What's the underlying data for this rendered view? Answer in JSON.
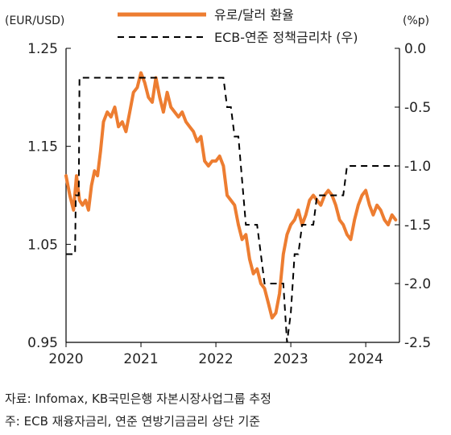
{
  "chart_data": {
    "type": "line",
    "left_unit": "(EUR/USD)",
    "right_unit": "(%p)",
    "left_axis": {
      "min": 0.95,
      "max": 1.25,
      "ticks": [
        "1.25",
        "1.15",
        "1.05",
        "0.95"
      ],
      "tick_values": [
        1.25,
        1.15,
        1.05,
        0.95
      ]
    },
    "right_axis": {
      "min": -2.5,
      "max": 0.0,
      "ticks": [
        "0.0",
        "-0.5",
        "-1.0",
        "-1.5",
        "-2.0",
        "-2.5"
      ],
      "tick_values": [
        0.0,
        -0.5,
        -1.0,
        -1.5,
        -2.0,
        -2.5
      ]
    },
    "x_axis": {
      "min": 2020.0,
      "max": 2024.45,
      "ticks": [
        "2020",
        "2021",
        "2022",
        "2023",
        "2024"
      ],
      "tick_values": [
        2020,
        2021,
        2022,
        2023,
        2024
      ]
    },
    "series": [
      {
        "name": "유로/달러 환율",
        "axis": "left",
        "style": "solid",
        "color": "#ED7D31",
        "x": [
          2020.0,
          2020.05,
          2020.1,
          2020.14,
          2020.18,
          2020.22,
          2020.26,
          2020.3,
          2020.34,
          2020.38,
          2020.42,
          2020.46,
          2020.5,
          2020.55,
          2020.6,
          2020.65,
          2020.7,
          2020.75,
          2020.8,
          2020.85,
          2020.9,
          2020.95,
          2021.0,
          2021.05,
          2021.1,
          2021.15,
          2021.2,
          2021.25,
          2021.3,
          2021.35,
          2021.4,
          2021.45,
          2021.5,
          2021.55,
          2021.6,
          2021.65,
          2021.7,
          2021.75,
          2021.8,
          2021.85,
          2021.9,
          2021.95,
          2022.0,
          2022.05,
          2022.1,
          2022.15,
          2022.2,
          2022.25,
          2022.3,
          2022.35,
          2022.4,
          2022.45,
          2022.5,
          2022.55,
          2022.6,
          2022.65,
          2022.7,
          2022.75,
          2022.8,
          2022.85,
          2022.9,
          2022.95,
          2023.0,
          2023.05,
          2023.1,
          2023.15,
          2023.2,
          2023.25,
          2023.3,
          2023.35,
          2023.4,
          2023.45,
          2023.5,
          2023.55,
          2023.6,
          2023.65,
          2023.7,
          2023.75,
          2023.8,
          2023.85,
          2023.9,
          2023.95,
          2024.0,
          2024.05,
          2024.1,
          2024.15,
          2024.2,
          2024.25,
          2024.3,
          2024.35,
          2024.4
        ],
        "values": [
          1.12,
          1.1,
          1.085,
          1.12,
          1.095,
          1.09,
          1.095,
          1.085,
          1.11,
          1.125,
          1.12,
          1.145,
          1.175,
          1.185,
          1.18,
          1.19,
          1.17,
          1.175,
          1.165,
          1.185,
          1.205,
          1.21,
          1.225,
          1.215,
          1.2,
          1.195,
          1.22,
          1.2,
          1.185,
          1.205,
          1.19,
          1.185,
          1.18,
          1.185,
          1.175,
          1.17,
          1.165,
          1.155,
          1.16,
          1.135,
          1.13,
          1.135,
          1.135,
          1.14,
          1.13,
          1.1,
          1.095,
          1.09,
          1.07,
          1.055,
          1.06,
          1.035,
          1.02,
          1.025,
          1.01,
          1.005,
          0.99,
          0.975,
          0.98,
          1.0,
          1.04,
          1.06,
          1.07,
          1.075,
          1.085,
          1.07,
          1.08,
          1.095,
          1.1,
          1.095,
          1.09,
          1.1,
          1.105,
          1.1,
          1.09,
          1.075,
          1.07,
          1.06,
          1.055,
          1.075,
          1.09,
          1.1,
          1.105,
          1.09,
          1.08,
          1.09,
          1.085,
          1.075,
          1.07,
          1.08,
          1.075
        ]
      },
      {
        "name": "ECB-연준 정책금리차 (우)",
        "axis": "right",
        "style": "dashed",
        "color": "#000000",
        "x": [
          2020.0,
          2020.12,
          2020.13,
          2020.17,
          2020.18,
          2021.2,
          2021.25,
          2022.1,
          2022.15,
          2022.2,
          2022.25,
          2022.3,
          2022.4,
          2022.45,
          2022.5,
          2022.55,
          2022.6,
          2022.65,
          2022.7,
          2022.75,
          2022.9,
          2022.95,
          2023.0,
          2023.05,
          2023.1,
          2023.15,
          2023.2,
          2023.25,
          2023.3,
          2023.35,
          2023.4,
          2023.45,
          2023.5,
          2023.55,
          2023.6,
          2023.65,
          2023.7,
          2023.75,
          2023.8,
          2023.85,
          2023.9,
          2024.0,
          2024.1,
          2024.2,
          2024.3,
          2024.4
        ],
        "values": [
          -1.75,
          -1.75,
          -1.25,
          -1.25,
          -0.25,
          -0.25,
          -0.25,
          -0.25,
          -0.5,
          -0.5,
          -0.75,
          -0.75,
          -1.5,
          -1.5,
          -1.5,
          -1.5,
          -1.75,
          -2.0,
          -2.0,
          -2.0,
          -2.0,
          -2.5,
          -2.25,
          -1.75,
          -1.75,
          -1.5,
          -1.5,
          -1.5,
          -1.5,
          -1.25,
          -1.25,
          -1.25,
          -1.25,
          -1.25,
          -1.25,
          -1.25,
          -1.25,
          -1.0,
          -1.0,
          -1.0,
          -1.0,
          -1.0,
          -1.0,
          -1.0,
          -1.0,
          -1.0
        ]
      }
    ]
  },
  "notes": {
    "source": "자료: Infomax, KB국민은행 자본시장사업그룹 추정",
    "footnote": "주: ECB 재융자금리, 연준 연방기금금리 상단 기준"
  }
}
